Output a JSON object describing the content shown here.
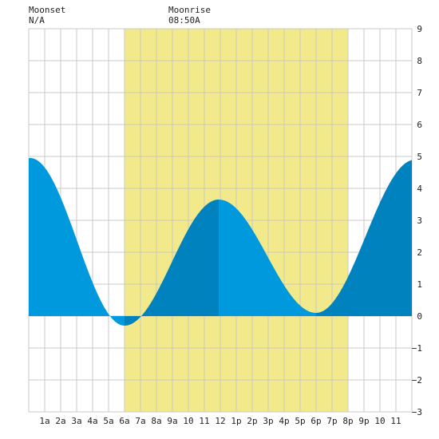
{
  "header": {
    "moonset_label": "Moonset",
    "moonset_value": "N/A",
    "moonrise_label": "Moonrise",
    "moonrise_value": "08:50A"
  },
  "chart_data": {
    "type": "area",
    "title": "",
    "xlabel": "",
    "ylabel": "",
    "x_tick_labels": [
      "1a",
      "2a",
      "3a",
      "4a",
      "5a",
      "6a",
      "7a",
      "8a",
      "9a",
      "10",
      "11",
      "12",
      "1p",
      "2p",
      "3p",
      "4p",
      "5p",
      "6p",
      "7p",
      "8p",
      "9p",
      "10",
      "11"
    ],
    "xlim": [
      0,
      24
    ],
    "ylim": [
      -3,
      9
    ],
    "y_ticks": [
      -3,
      -2,
      -1,
      0,
      1,
      2,
      3,
      4,
      5,
      6,
      7,
      8,
      9
    ],
    "grid": true,
    "daylight": {
      "start_hour": 6.0,
      "end_hour": 20.0,
      "color": "#f2ea8a"
    },
    "colors": {
      "fill_light": "#0099dd",
      "fill_dark": "#0082bf",
      "grid": "#c8c8c8"
    },
    "extremes": [
      {
        "hour": 6.0,
        "value": -0.3,
        "type": "low"
      },
      {
        "hour": 11.9,
        "value": 3.65,
        "type": "high"
      },
      {
        "hour": 18.0,
        "value": 0.1,
        "type": "low"
      },
      {
        "hour": 24.2,
        "value": 4.9,
        "type": "high"
      }
    ],
    "series": [
      {
        "x": [
          0,
          1,
          2,
          3,
          4,
          5,
          6,
          7,
          8,
          9,
          10,
          11,
          12,
          13,
          14,
          15,
          16,
          17,
          18,
          19,
          20,
          21,
          22,
          23,
          24
        ],
        "values": [
          4.95,
          4.3,
          3.2,
          1.9,
          0.8,
          0.05,
          -0.3,
          0.05,
          0.95,
          2.1,
          3.05,
          3.6,
          3.65,
          3.3,
          2.5,
          1.5,
          0.6,
          0.12,
          0.1,
          0.55,
          1.5,
          2.65,
          3.75,
          4.55,
          4.8
        ]
      }
    ]
  }
}
